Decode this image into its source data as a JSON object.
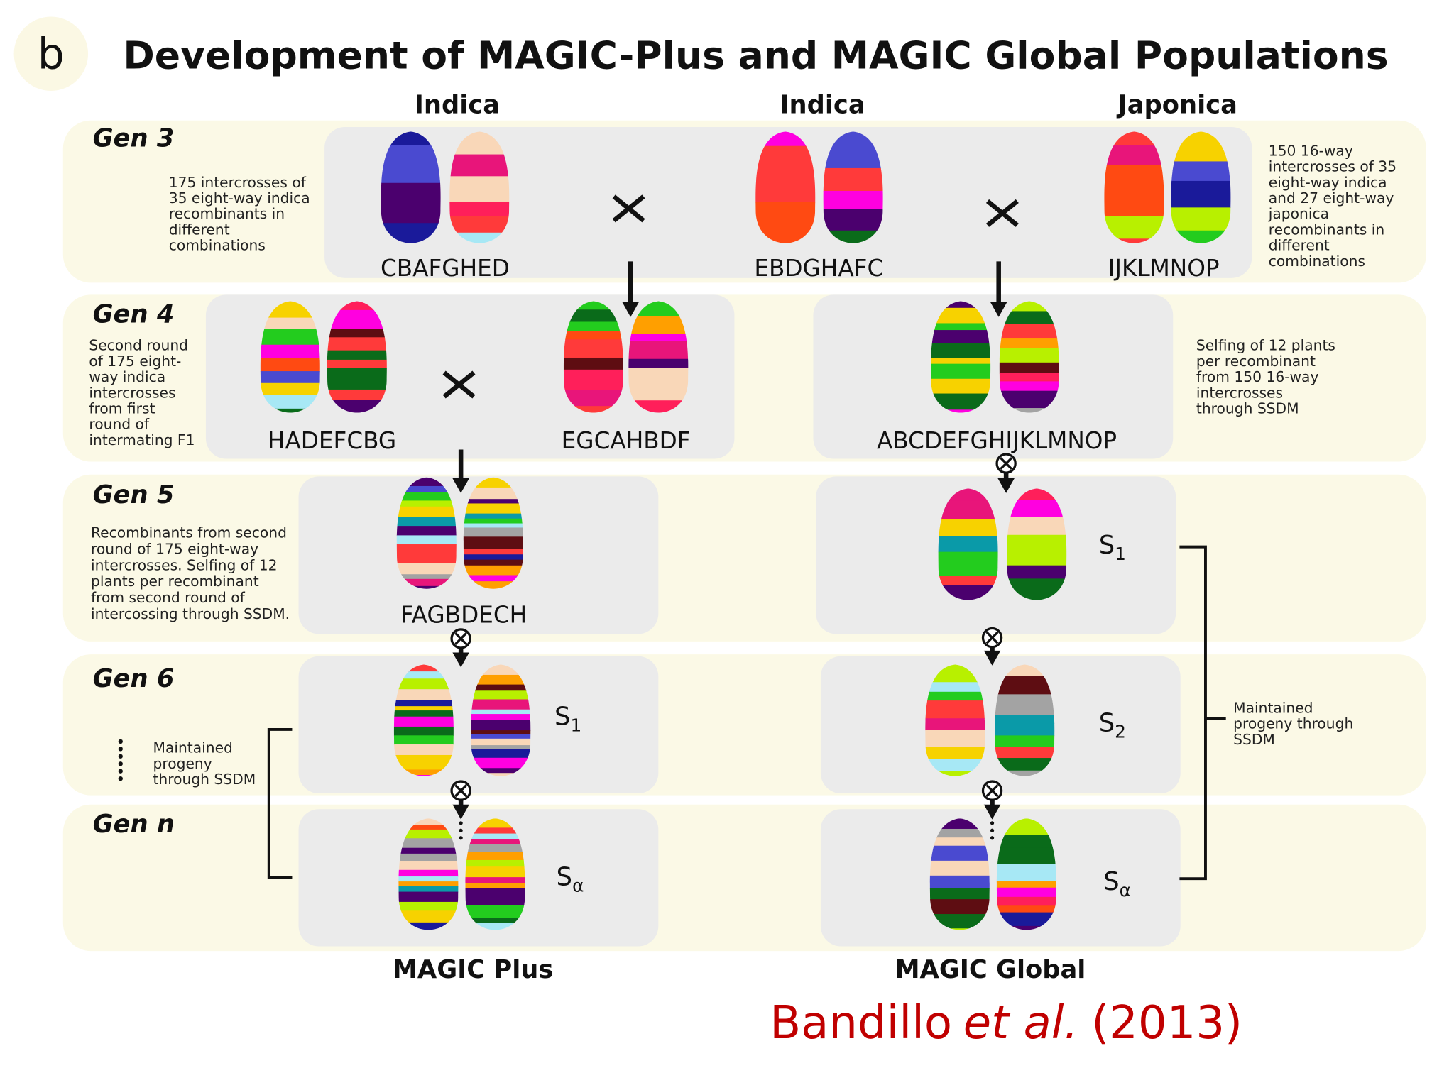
{
  "panel_label": "b",
  "title": "Development of MAGIC-Plus and MAGIC Global Populations",
  "parent_groups": [
    "Indica",
    "Indica",
    "Japonica"
  ],
  "gen_labels": [
    "Gen 3",
    "Gen 4",
    "Gen 5",
    "Gen 6",
    "Gen n"
  ],
  "notes": [
    [
      "175 intercrosses of",
      "35 eight-way indica",
      "recombinants in",
      "different",
      "combinations"
    ],
    [
      "150 16-way",
      "intercrosses of 35",
      "eight-way indica",
      "and 27 eight-way",
      "japonica",
      "recombinants in",
      "different",
      "combinations"
    ],
    [
      "Second round",
      "of 175 eight-",
      "way indica",
      "intercrosses",
      "from first",
      "round of",
      "intermating F1"
    ],
    [
      "Selfing of 12 plants",
      "per recombinant",
      "from 150 16-way",
      "intercrosses",
      "through SSDM"
    ],
    [
      "Recombinants from second",
      "round of 175 eight-way",
      "intercrosses. Selfing of 12",
      "plants per recombinant",
      "from second round of",
      "intercossing through SSDM."
    ],
    [
      "Maintained",
      "progeny",
      "through SSDM"
    ],
    [
      "Maintained",
      "progeny through",
      "SSDM"
    ]
  ],
  "line_names": [
    "CBAFGHED",
    "EBDGHAFC",
    "IJKLMNOP",
    "HADEFCBG",
    "EGCAHBDF",
    "ABCDEFGHIJKLMNOP",
    "FAGBDECH"
  ],
  "selfing_labels": [
    {
      "letter": "S",
      "sub": "1"
    },
    {
      "letter": "S",
      "sub": "1"
    },
    {
      "letter": "S",
      "sub": "2"
    },
    {
      "letter": "S",
      "sub": "α"
    },
    {
      "letter": "S",
      "sub": "α"
    }
  ],
  "populations": [
    "MAGIC Plus",
    "MAGIC Global"
  ],
  "citation": {
    "author": "Bandillo",
    "etal": "et al.",
    "year": "(2013)"
  }
}
